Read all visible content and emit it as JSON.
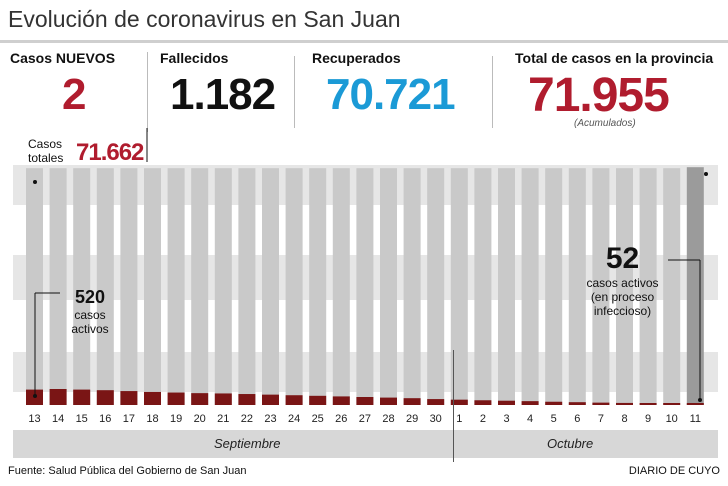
{
  "title": "Evolución de coronavirus en San Juan",
  "stats": {
    "nuevos": {
      "label": "Casos NUEVOS",
      "value": "2"
    },
    "fallecidos": {
      "label": "Fallecidos",
      "value": "1.182"
    },
    "recuperados": {
      "label": "Recuperados",
      "value": "70.721"
    },
    "total": {
      "label": "Total de casos en la provincia",
      "value": "71.955",
      "note": "(Acumulados)"
    }
  },
  "casos_totales": {
    "label_line1": "Casos",
    "label_line2": "totales",
    "value": "71.662"
  },
  "annotations": {
    "start": {
      "value": "520",
      "line1": "casos",
      "line2": "activos"
    },
    "end": {
      "value": "52",
      "line1": "casos activos",
      "line2": "(en proceso",
      "line3": "infeccioso)"
    }
  },
  "months": {
    "september": "Septiembre",
    "october": "Octubre"
  },
  "footer": {
    "source": "Fuente: Salud Pública del Gobierno de San Juan",
    "credit": "DIARIO DE CUYO"
  },
  "colors": {
    "accent_red": "#b01c2e",
    "blue": "#1b9ad6",
    "active_bar": "#7a1515",
    "bar_gray": "#c9c9c9",
    "last_bar": "#9b9b9b",
    "band": "#e6e6e6"
  },
  "chart_data": {
    "type": "bar",
    "title": "Evolución de coronavirus en San Juan",
    "categories": [
      "13",
      "14",
      "15",
      "16",
      "17",
      "18",
      "19",
      "20",
      "21",
      "22",
      "23",
      "24",
      "25",
      "26",
      "27",
      "28",
      "29",
      "30",
      "1",
      "2",
      "3",
      "4",
      "5",
      "6",
      "7",
      "8",
      "9",
      "10",
      "11"
    ],
    "series": [
      {
        "name": "Casos totales",
        "values": [
          71662,
          71662,
          71662,
          71662,
          71662,
          71662,
          71662,
          71662,
          71662,
          71662,
          71662,
          71662,
          71662,
          71662,
          71662,
          71662,
          71662,
          71662,
          71662,
          71662,
          71662,
          71662,
          71662,
          71662,
          71662,
          71662,
          71662,
          71662,
          71955
        ]
      },
      {
        "name": "Casos activos",
        "values": [
          520,
          540,
          520,
          500,
          470,
          440,
          420,
          400,
          390,
          370,
          350,
          330,
          310,
          290,
          270,
          250,
          230,
          200,
          180,
          160,
          145,
          130,
          110,
          95,
          80,
          70,
          60,
          55,
          52
        ]
      }
    ],
    "xlabel": "",
    "ylabel": "",
    "groups": [
      {
        "label": "Septiembre",
        "from": "13",
        "to": "30"
      },
      {
        "label": "Octubre",
        "from": "1",
        "to": "11"
      }
    ],
    "ylim": [
      0,
      72000
    ]
  }
}
